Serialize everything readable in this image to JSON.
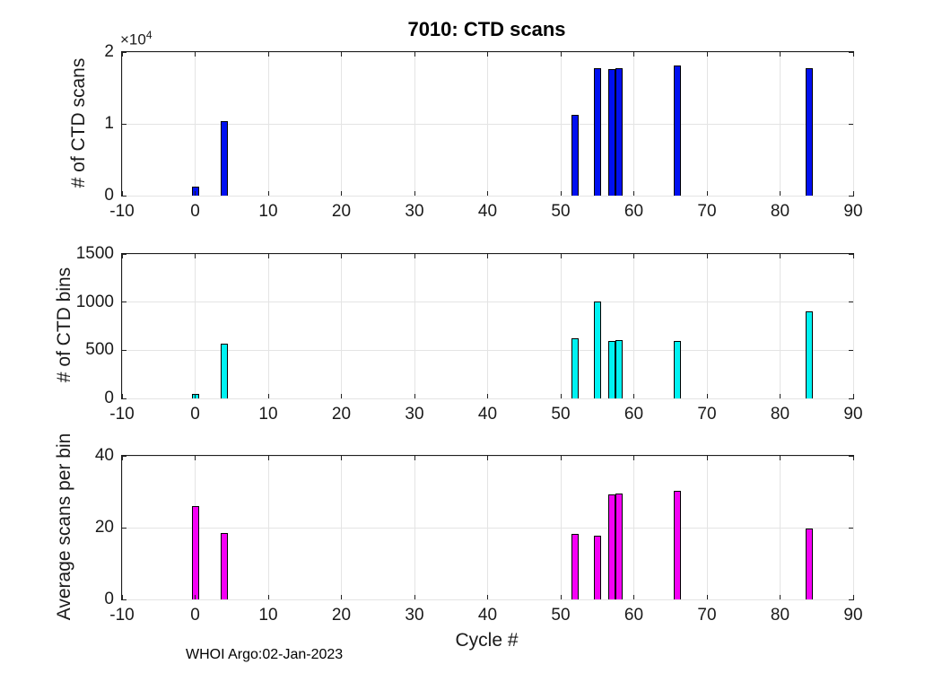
{
  "chart_data": {
    "type": "bar",
    "title": "7010: CTD scans",
    "xlabel": "Cycle #",
    "footer": "WHOI Argo:02-Jan-2023",
    "x": [
      0,
      4,
      52,
      55,
      57,
      58,
      66,
      84
    ],
    "xlim": [
      -10,
      90
    ],
    "xticks": [
      -10,
      0,
      10,
      20,
      30,
      40,
      50,
      60,
      70,
      80,
      90
    ],
    "grid": true,
    "axis_color": "#1f1f1f",
    "grid_color": "#e4e4e4",
    "subplots": [
      {
        "name": "ctd-scans",
        "ylabel": "# of CTD scans",
        "ylim": [
          0,
          20000
        ],
        "yticks": [
          0,
          10000,
          20000
        ],
        "ytick_labels": [
          "0",
          "1",
          "2"
        ],
        "exponent": {
          "base": "×10",
          "power": "4"
        },
        "bar_color": "#0010f0",
        "values": [
          1300,
          10400,
          11300,
          17800,
          17600,
          17700,
          18100,
          17700
        ]
      },
      {
        "name": "ctd-bins",
        "ylabel": "# of CTD bins",
        "ylim": [
          0,
          1500
        ],
        "yticks": [
          0,
          500,
          1000,
          1500
        ],
        "ytick_labels": [
          "0",
          "500",
          "1000",
          "1500"
        ],
        "bar_color": "#00f2f2",
        "values": [
          50,
          565,
          620,
          1010,
          600,
          605,
          600,
          900
        ]
      },
      {
        "name": "avg-scans-per-bin",
        "ylabel": "Average scans per bin",
        "ylim": [
          0,
          40
        ],
        "yticks": [
          0,
          20,
          40
        ],
        "ytick_labels": [
          "0",
          "20",
          "40"
        ],
        "bar_color": "#f500f5",
        "values": [
          26,
          18.5,
          18.3,
          17.8,
          29.3,
          29.4,
          30.3,
          19.8
        ]
      }
    ]
  }
}
